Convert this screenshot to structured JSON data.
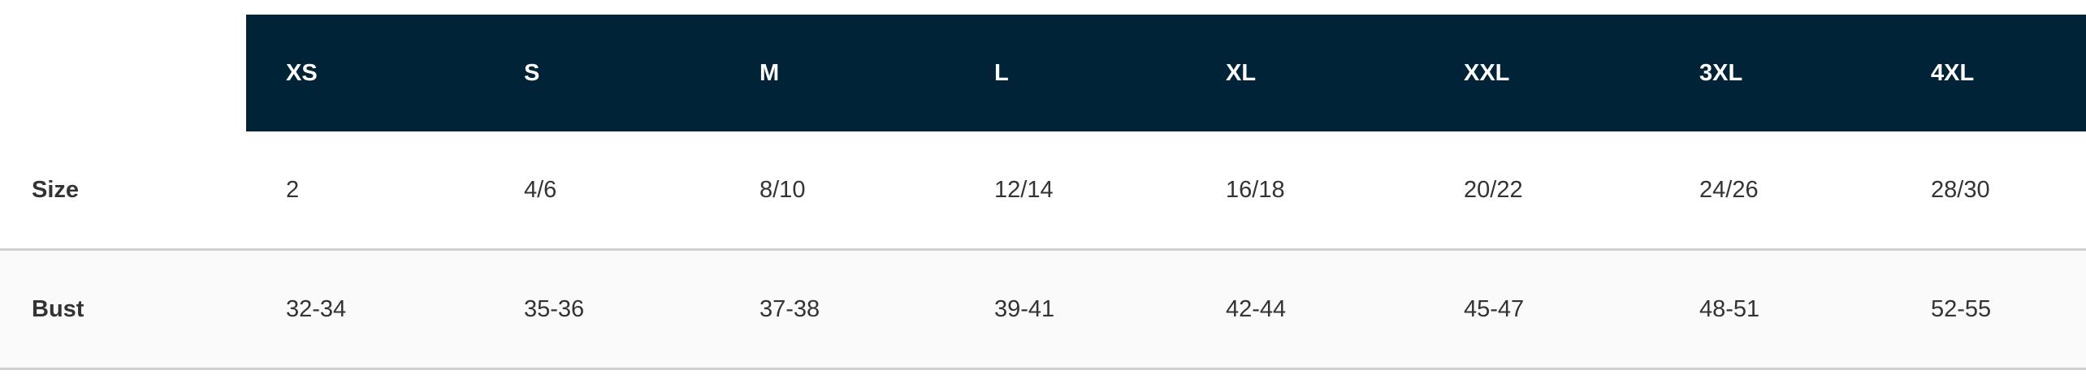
{
  "colors": {
    "header_bg": "#012338",
    "header_text": "#ffffff",
    "alt_row_bg": "#fafafa",
    "divider": "#d0d0d0"
  },
  "header": [
    "XS",
    "S",
    "M",
    "L",
    "XL",
    "XXL",
    "3XL",
    "4XL"
  ],
  "rows": [
    {
      "label": "Size",
      "values": [
        "2",
        "4/6",
        "8/10",
        "12/14",
        "16/18",
        "20/22",
        "24/26",
        "28/30"
      ]
    },
    {
      "label": "Bust",
      "values": [
        "32-34",
        "35-36",
        "37-38",
        "39-41",
        "42-44",
        "45-47",
        "48-51",
        "52-55"
      ]
    }
  ]
}
